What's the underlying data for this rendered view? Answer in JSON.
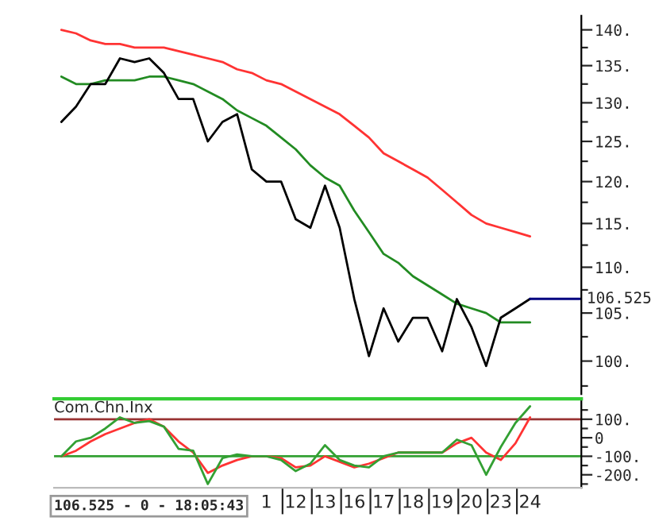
{
  "chart_data": [
    {
      "type": "line",
      "log": true,
      "tick_labels": "y",
      "ylim": [
        96.7,
        142
      ],
      "categories": [
        null,
        null,
        null,
        null,
        null,
        null,
        null,
        null,
        null,
        null,
        null,
        null,
        null,
        null,
        "1",
        null,
        "12",
        null,
        "13",
        null,
        "16",
        null,
        "17",
        null,
        "18",
        null,
        "19",
        null,
        "20",
        null,
        "23",
        null,
        "24",
        null,
        null,
        null
      ],
      "yticks": [
        {
          "value": 100,
          "label": "100."
        },
        {
          "value": 105,
          "label": "105."
        },
        {
          "value": 110,
          "label": "110."
        },
        {
          "value": 115,
          "label": "115."
        },
        {
          "value": 120,
          "label": "120."
        },
        {
          "value": 125,
          "label": "125."
        },
        {
          "value": 130,
          "label": "130."
        },
        {
          "value": 135,
          "label": "135."
        },
        {
          "value": 140,
          "label": "140."
        },
        {
          "value": 97.5,
          "label": null
        },
        {
          "value": 102.5,
          "label": null
        },
        {
          "value": 107.5,
          "label": null
        },
        {
          "value": 112.5,
          "label": null
        },
        {
          "value": 117.5,
          "label": null
        },
        {
          "value": 122.5,
          "label": null
        },
        {
          "value": 127.5,
          "label": null
        },
        {
          "value": 132.5,
          "label": null
        },
        {
          "value": 137.5,
          "label": null
        }
      ],
      "series": [
        {
          "color": "#ff3333",
          "values": [
            140,
            139.5,
            138.5,
            138,
            138,
            137.5,
            137.5,
            137.5,
            137,
            136.5,
            136,
            135.5,
            134.5,
            134,
            133,
            132.5,
            131.5,
            130.5,
            129.5,
            128.5,
            127,
            125.5,
            123.5,
            122.5,
            121.5,
            120.5,
            119,
            117.5,
            116,
            115,
            114.5,
            114,
            113.5,
            null,
            null,
            null
          ]
        },
        {
          "color": "#228b22",
          "values": [
            133.5,
            132.5,
            132.5,
            133,
            133,
            133,
            133.5,
            133.5,
            133,
            132.5,
            131.5,
            130.5,
            129,
            128,
            127,
            125.5,
            124,
            122,
            120.5,
            119.5,
            116.5,
            114,
            111.5,
            110.5,
            109,
            108,
            107,
            106,
            105.5,
            105,
            104,
            104,
            104,
            null,
            null,
            null
          ]
        },
        {
          "color": "#000000",
          "values": [
            127.5,
            129.5,
            132.5,
            132.5,
            136,
            135.5,
            136,
            134,
            130.5,
            130.5,
            125,
            127.5,
            128.5,
            121.5,
            120,
            120,
            115.5,
            114.5,
            119.5,
            114.5,
            106.5,
            100.5,
            105.5,
            102,
            104.5,
            104.5,
            101,
            106.5,
            103.5,
            99.5,
            104.5,
            105.5,
            106.525,
            null,
            null,
            null
          ]
        }
      ],
      "ref_lines": [
        {
          "axis": "y",
          "value": 106.525,
          "label": "106.525",
          "color": "#000080"
        }
      ]
    },
    {
      "type": "line",
      "title": "Com.Chn.Inx",
      "ylim": [
        -270,
        210
      ],
      "categories": [
        null,
        null,
        null,
        null,
        null,
        null,
        null,
        null,
        null,
        null,
        null,
        null,
        null,
        null,
        "1",
        null,
        "12",
        null,
        "13",
        null,
        "16",
        null,
        "17",
        null,
        "18",
        null,
        "19",
        null,
        "20",
        null,
        "23",
        null,
        "24",
        null,
        null,
        null
      ],
      "yticks": [
        {
          "value": 100,
          "label": "100."
        },
        0,
        {
          "value": -100,
          "label": "-100."
        },
        {
          "value": -200,
          "label": "-200."
        },
        {
          "value": 150,
          "label": null
        },
        {
          "value": 50,
          "label": null
        },
        {
          "value": -50,
          "label": null
        },
        {
          "value": -150,
          "label": null
        },
        {
          "value": -250,
          "label": null
        }
      ],
      "series": [
        {
          "color": "#ff3333",
          "values": [
            -100,
            -70,
            -20,
            20,
            50,
            80,
            100,
            60,
            -20,
            -80,
            -190,
            -150,
            -120,
            -100,
            -100,
            -110,
            -160,
            -150,
            -100,
            -130,
            -160,
            -140,
            -110,
            -80,
            -80,
            -80,
            -80,
            -30,
            0,
            -80,
            -120,
            -30,
            110,
            null,
            null,
            null
          ]
        },
        {
          "color": "#33a033",
          "values": [
            -100,
            -20,
            0,
            50,
            110,
            80,
            90,
            60,
            -60,
            -70,
            -250,
            -110,
            -90,
            -100,
            -100,
            -120,
            -180,
            -140,
            -40,
            -120,
            -150,
            -160,
            -100,
            -80,
            -80,
            -80,
            -80,
            -10,
            -40,
            -200,
            -50,
            80,
            170,
            null,
            null,
            null
          ]
        }
      ],
      "ref_lines": [
        {
          "axis": "y",
          "value": 100,
          "color": "#993333"
        },
        {
          "axis": "y",
          "value": -100,
          "color": "#33a033"
        }
      ],
      "annotations": [
        "106.525 - 0 - 18:05:43"
      ]
    }
  ]
}
